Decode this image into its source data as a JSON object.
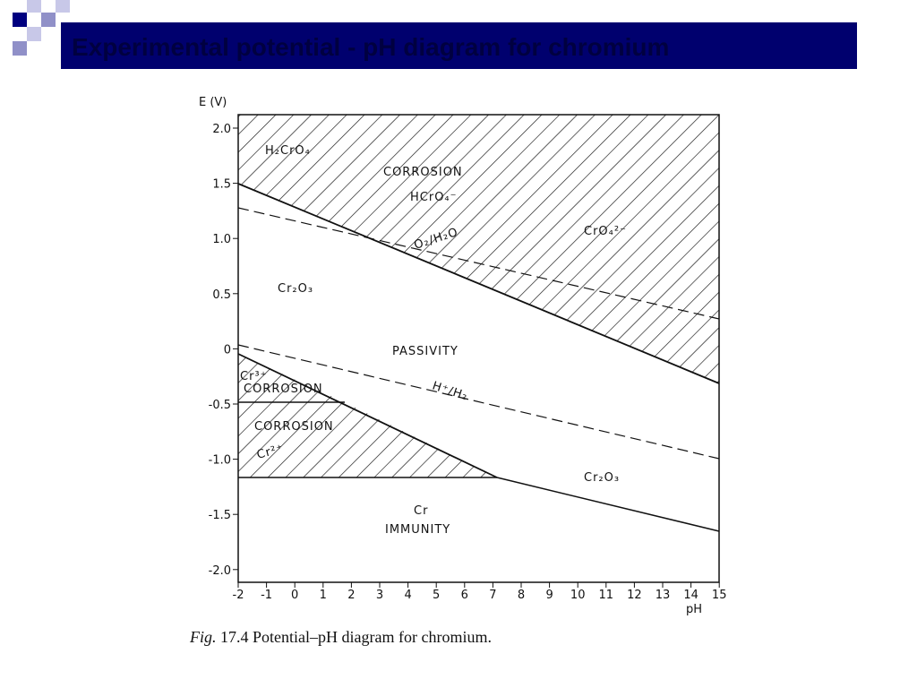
{
  "title": "Experimental potential - pH diagram for chromium",
  "figure": {
    "y_axis_label": "E (V)",
    "x_axis_label": "pH",
    "y_tick_labels": [
      "2.0",
      "1.5",
      "1.0",
      "0.5",
      "0",
      "-0.5",
      "-1.0",
      "-1.5",
      "-2.0"
    ],
    "x_tick_labels": [
      "-2",
      "-1",
      "0",
      "1",
      "2",
      "3",
      "4",
      "5",
      "6",
      "7",
      "8",
      "9",
      "10",
      "11",
      "12",
      "13",
      "14",
      "15"
    ],
    "region_labels": [
      "H₂CrO₄",
      "CORROSION",
      "HCrO₄⁻",
      "CrO₄²⁻",
      "O₂/H₂O",
      "Cr₂O₃",
      "PASSIVITY",
      "H⁺/H₂",
      "Cr³⁺",
      "CORROSION",
      "CORROSION",
      "Cr²⁺",
      "Cr₂O₃",
      "Cr",
      "IMMUNITY"
    ]
  },
  "caption": {
    "prefix": "Fig.",
    "text": "17.4  Potential–pH diagram for chromium."
  }
}
